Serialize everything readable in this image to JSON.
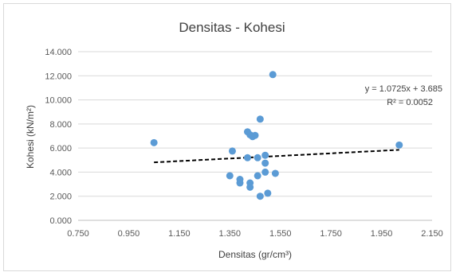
{
  "chart_data": {
    "type": "scatter",
    "title": "Densitas - Kohesi",
    "xlabel": "Densitas (gr/cm³)",
    "ylabel": "Kohesi (kN/m²)",
    "xlim": [
      0.75,
      2.15
    ],
    "ylim": [
      0.0,
      14.0
    ],
    "x_ticks": [
      "0.750",
      "0.950",
      "1.150",
      "1.350",
      "1.550",
      "1.750",
      "1.950",
      "2.150"
    ],
    "y_ticks": [
      "0.000",
      "2.000",
      "4.000",
      "6.000",
      "8.000",
      "10.000",
      "12.000",
      "14.000"
    ],
    "grid": "horizontal",
    "marker_color": "#5b9bd5",
    "trendline": {
      "type": "linear",
      "slope": 1.0725,
      "intercept": 3.685,
      "x_range": [
        1.05,
        2.02
      ],
      "style": "dashed",
      "color": "#000000",
      "equation_label": "y = 1.0725x + 3.685",
      "r2_label": "R² = 0.0052"
    },
    "series": [
      {
        "points": [
          [
            1.05,
            6.45
          ],
          [
            1.35,
            3.7
          ],
          [
            1.36,
            5.75
          ],
          [
            1.39,
            3.4
          ],
          [
            1.39,
            3.1
          ],
          [
            1.42,
            5.2
          ],
          [
            1.42,
            7.35
          ],
          [
            1.43,
            7.1
          ],
          [
            1.43,
            2.75
          ],
          [
            1.43,
            3.1
          ],
          [
            1.44,
            6.95
          ],
          [
            1.45,
            7.05
          ],
          [
            1.46,
            5.2
          ],
          [
            1.46,
            3.7
          ],
          [
            1.47,
            8.4
          ],
          [
            1.47,
            2.0
          ],
          [
            1.49,
            5.4
          ],
          [
            1.49,
            4.75
          ],
          [
            1.49,
            4.0
          ],
          [
            1.5,
            2.25
          ],
          [
            1.52,
            12.1
          ],
          [
            1.53,
            3.9
          ],
          [
            2.02,
            6.25
          ]
        ]
      }
    ]
  }
}
